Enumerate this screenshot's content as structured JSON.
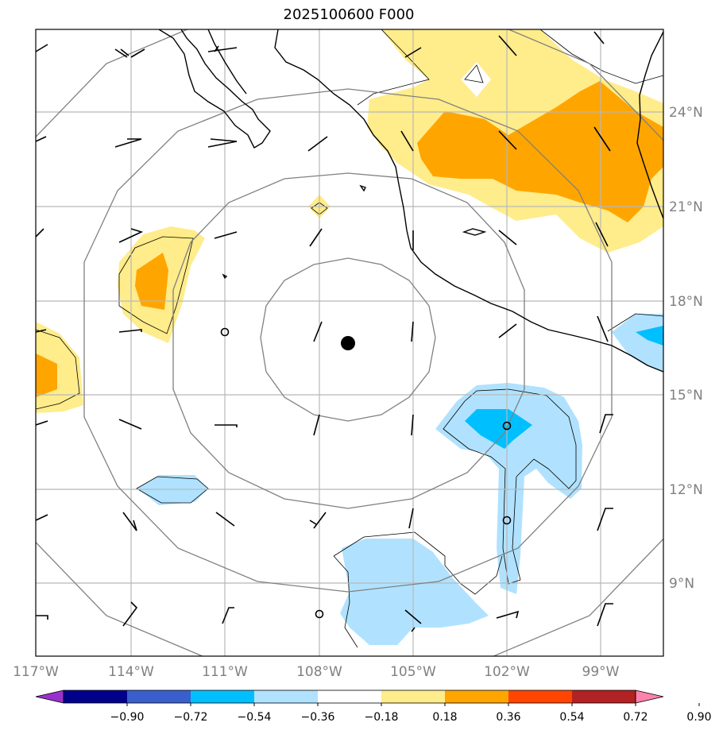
{
  "title": "2025100600 F000",
  "lon_labels": [
    "117°W",
    "114°W",
    "111°W",
    "108°W",
    "105°W",
    "102°W",
    "99°W"
  ],
  "lat_labels": [
    "24°N",
    "21°N",
    "18°N",
    "15°N",
    "12°N",
    "9°N"
  ],
  "colorbar": {
    "ticks": [
      "−0.90",
      "−0.72",
      "−0.54",
      "−0.36",
      "−0.18",
      "0.18",
      "0.36",
      "0.54",
      "0.72",
      "0.90"
    ],
    "colors": [
      "#9932cc",
      "#00008b",
      "#3a5fcd",
      "#00bfff",
      "#b0e2ff",
      "#ffffff",
      "#ffec8b",
      "#ffa500",
      "#ff4500",
      "#b22222",
      "#ff82ab"
    ]
  },
  "center_marker": {
    "lon": -107.1,
    "lat": 16.6
  },
  "calm_markers": [
    {
      "lon": -111.0,
      "lat": 16.9
    },
    {
      "lon": -102.0,
      "lat": 14.0
    },
    {
      "lon": -102.0,
      "lat": 11.0
    },
    {
      "lon": -108.0,
      "lat": 8.0
    }
  ]
}
